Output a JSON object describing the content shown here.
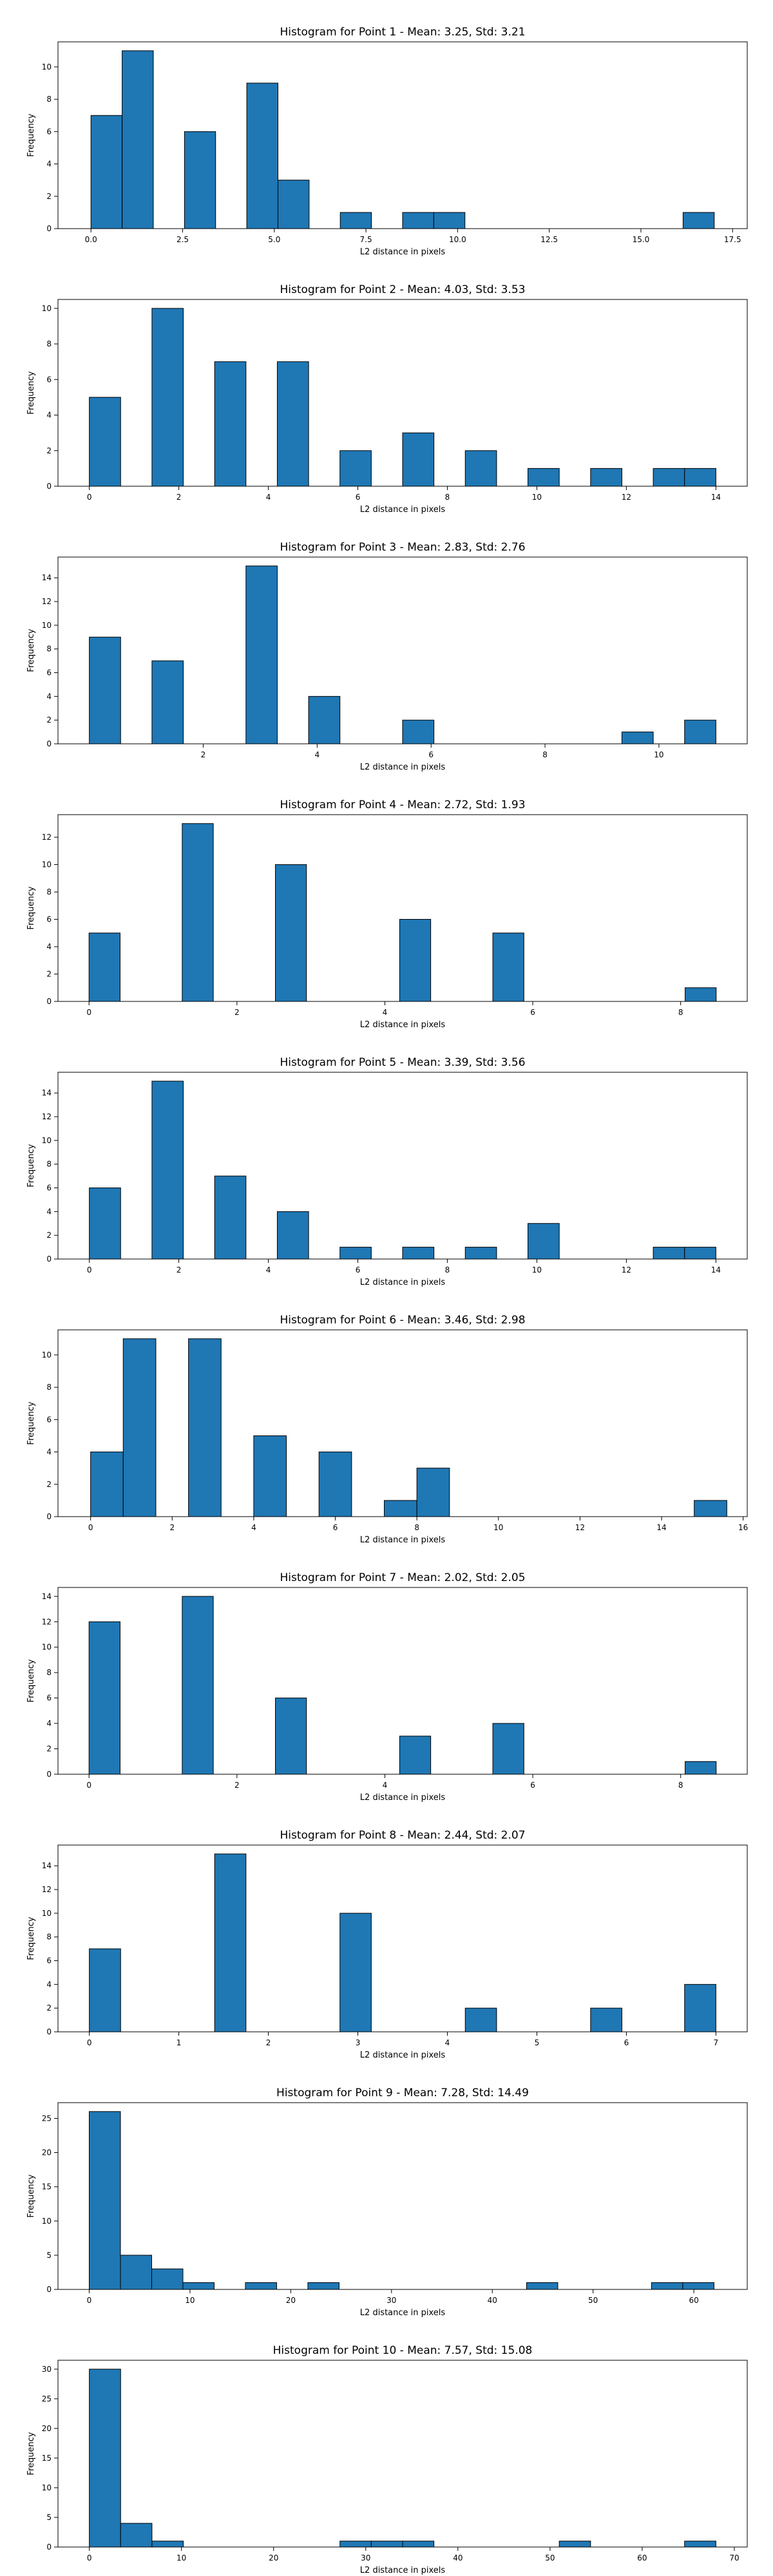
{
  "chart_data": [
    {
      "type": "bar",
      "title": "Histogram for Point 1 - Mean: 3.25, Std: 3.21",
      "xlabel": "L2 distance in pixels",
      "ylabel": "Frequency",
      "xlim": [
        -0.9,
        17.9
      ],
      "ylim": [
        0,
        11.55
      ],
      "bin_width": 0.85,
      "bins": [
        {
          "x": 0,
          "value": 7
        },
        {
          "x": 0.85,
          "value": 11
        },
        {
          "x": 2.55,
          "value": 6
        },
        {
          "x": 4.25,
          "value": 9
        },
        {
          "x": 5.1,
          "value": 3
        },
        {
          "x": 6.8,
          "value": 1
        },
        {
          "x": 8.5,
          "value": 1
        },
        {
          "x": 9.35,
          "value": 1
        },
        {
          "x": 16.15,
          "value": 1
        }
      ],
      "xticks": [
        0,
        2.5,
        5,
        7.5,
        10,
        12.5,
        15,
        17.5
      ],
      "xticklabels": [
        "0.0",
        "2.5",
        "5.0",
        "7.5",
        "10.0",
        "12.5",
        "15.0",
        "17.5"
      ],
      "yticks": [
        0,
        2,
        4,
        6,
        8,
        10
      ],
      "yticklabels": [
        "0",
        "2",
        "4",
        "6",
        "8",
        "10"
      ],
      "grid": false
    },
    {
      "type": "bar",
      "title": "Histogram for Point 2 - Mean: 4.03, Std: 3.53",
      "xlabel": "L2 distance in pixels",
      "ylabel": "Frequency",
      "xlim": [
        -0.7,
        14.7
      ],
      "ylim": [
        0,
        10.5
      ],
      "bin_width": 0.7,
      "bins": [
        {
          "x": 0,
          "value": 5
        },
        {
          "x": 1.4,
          "value": 10
        },
        {
          "x": 2.8,
          "value": 7
        },
        {
          "x": 4.2,
          "value": 7
        },
        {
          "x": 5.6,
          "value": 2
        },
        {
          "x": 7,
          "value": 3
        },
        {
          "x": 8.4,
          "value": 2
        },
        {
          "x": 9.8,
          "value": 1
        },
        {
          "x": 11.2,
          "value": 1
        },
        {
          "x": 12.6,
          "value": 1
        },
        {
          "x": 13.3,
          "value": 1
        }
      ],
      "xticks": [
        0,
        2,
        4,
        6,
        8,
        10,
        12,
        14
      ],
      "xticklabels": [
        "0",
        "2",
        "4",
        "6",
        "8",
        "10",
        "12",
        "14"
      ],
      "yticks": [
        0,
        2,
        4,
        6,
        8,
        10
      ],
      "yticklabels": [
        "0",
        "2",
        "4",
        "6",
        "8",
        "10"
      ],
      "grid": false
    },
    {
      "type": "bar",
      "title": "Histogram for Point 3 - Mean: 2.83, Std: 2.76",
      "xlabel": "L2 distance in pixels",
      "ylabel": "Frequency",
      "xlim": [
        -0.55,
        11.55
      ],
      "ylim": [
        0,
        15.75
      ],
      "bin_width": 0.55,
      "bins": [
        {
          "x": 0,
          "value": 9
        },
        {
          "x": 1.1,
          "value": 7
        },
        {
          "x": 2.75,
          "value": 15
        },
        {
          "x": 3.85,
          "value": 4
        },
        {
          "x": 5.5,
          "value": 2
        },
        {
          "x": 9.35,
          "value": 1
        },
        {
          "x": 10.45,
          "value": 2
        }
      ],
      "xticks": [
        2,
        4,
        6,
        8,
        10
      ],
      "xticklabels": [
        "2",
        "4",
        "6",
        "8",
        "10"
      ],
      "yticks": [
        0,
        2,
        4,
        6,
        8,
        10,
        12,
        14
      ],
      "yticklabels": [
        "0",
        "2",
        "4",
        "6",
        "8",
        "10",
        "12",
        "14"
      ],
      "grid": false
    },
    {
      "type": "bar",
      "title": "Histogram for Point 4 - Mean: 2.72, Std: 1.93",
      "xlabel": "L2 distance in pixels",
      "ylabel": "Frequency",
      "xlim": [
        -0.42,
        8.9
      ],
      "ylim": [
        0,
        13.65
      ],
      "bin_width": 0.42,
      "bins": [
        {
          "x": 0,
          "value": 5
        },
        {
          "x": 1.26,
          "value": 13
        },
        {
          "x": 2.52,
          "value": 10
        },
        {
          "x": 4.2,
          "value": 6
        },
        {
          "x": 5.46,
          "value": 5
        },
        {
          "x": 8.06,
          "value": 1
        }
      ],
      "xticks": [
        0,
        2,
        4,
        6,
        8
      ],
      "xticklabels": [
        "0",
        "2",
        "4",
        "6",
        "8"
      ],
      "yticks": [
        0,
        2,
        4,
        6,
        8,
        10,
        12
      ],
      "yticklabels": [
        "0",
        "2",
        "4",
        "6",
        "8",
        "10",
        "12"
      ],
      "grid": false
    },
    {
      "type": "bar",
      "title": "Histogram for Point 5 - Mean: 3.39, Std: 3.56",
      "xlabel": "L2 distance in pixels",
      "ylabel": "Frequency",
      "xlim": [
        -0.7,
        14.7
      ],
      "ylim": [
        0,
        15.75
      ],
      "bin_width": 0.7,
      "bins": [
        {
          "x": 0,
          "value": 6
        },
        {
          "x": 1.4,
          "value": 15
        },
        {
          "x": 2.8,
          "value": 7
        },
        {
          "x": 4.2,
          "value": 4
        },
        {
          "x": 5.6,
          "value": 1
        },
        {
          "x": 7,
          "value": 1
        },
        {
          "x": 8.4,
          "value": 1
        },
        {
          "x": 9.8,
          "value": 3
        },
        {
          "x": 12.6,
          "value": 1
        },
        {
          "x": 13.3,
          "value": 1
        }
      ],
      "xticks": [
        0,
        2,
        4,
        6,
        8,
        10,
        12,
        14
      ],
      "xticklabels": [
        "0",
        "2",
        "4",
        "6",
        "8",
        "10",
        "12",
        "14"
      ],
      "yticks": [
        0,
        2,
        4,
        6,
        8,
        10,
        12,
        14
      ],
      "yticklabels": [
        "0",
        "2",
        "4",
        "6",
        "8",
        "10",
        "12",
        "14"
      ],
      "grid": false
    },
    {
      "type": "bar",
      "title": "Histogram for Point 6 - Mean: 3.46, Std: 2.98",
      "xlabel": "L2 distance in pixels",
      "ylabel": "Frequency",
      "xlim": [
        -0.8,
        16.1
      ],
      "ylim": [
        0,
        11.55
      ],
      "bin_width": 0.8,
      "bins": [
        {
          "x": 0,
          "value": 4
        },
        {
          "x": 0.8,
          "value": 11
        },
        {
          "x": 2.4,
          "value": 11
        },
        {
          "x": 4,
          "value": 5
        },
        {
          "x": 5.6,
          "value": 4
        },
        {
          "x": 7.2,
          "value": 1
        },
        {
          "x": 8,
          "value": 3
        },
        {
          "x": 14.8,
          "value": 1
        }
      ],
      "xticks": [
        0,
        2,
        4,
        6,
        8,
        10,
        12,
        14,
        16
      ],
      "xticklabels": [
        "0",
        "2",
        "4",
        "6",
        "8",
        "10",
        "12",
        "14",
        "16"
      ],
      "yticks": [
        0,
        2,
        4,
        6,
        8,
        10
      ],
      "yticklabels": [
        "0",
        "2",
        "4",
        "6",
        "8",
        "10"
      ],
      "grid": false
    },
    {
      "type": "bar",
      "title": "Histogram for Point 7 - Mean: 2.02, Std: 2.05",
      "xlabel": "L2 distance in pixels",
      "ylabel": "Frequency",
      "xlim": [
        -0.42,
        8.9
      ],
      "ylim": [
        0,
        14.7
      ],
      "bin_width": 0.42,
      "bins": [
        {
          "x": 0,
          "value": 12
        },
        {
          "x": 1.26,
          "value": 14
        },
        {
          "x": 2.52,
          "value": 6
        },
        {
          "x": 4.2,
          "value": 3
        },
        {
          "x": 5.46,
          "value": 4
        },
        {
          "x": 8.06,
          "value": 1
        }
      ],
      "xticks": [
        0,
        2,
        4,
        6,
        8
      ],
      "xticklabels": [
        "0",
        "2",
        "4",
        "6",
        "8"
      ],
      "yticks": [
        0,
        2,
        4,
        6,
        8,
        10,
        12,
        14
      ],
      "yticklabels": [
        "0",
        "2",
        "4",
        "6",
        "8",
        "10",
        "12",
        "14"
      ],
      "grid": false
    },
    {
      "type": "bar",
      "title": "Histogram for Point 8 - Mean: 2.44, Std: 2.07",
      "xlabel": "L2 distance in pixels",
      "ylabel": "Frequency",
      "xlim": [
        -0.35,
        7.35
      ],
      "ylim": [
        0,
        15.75
      ],
      "bin_width": 0.35,
      "bins": [
        {
          "x": 0,
          "value": 7
        },
        {
          "x": 1.4,
          "value": 15
        },
        {
          "x": 2.8,
          "value": 10
        },
        {
          "x": 4.2,
          "value": 2
        },
        {
          "x": 5.6,
          "value": 2
        },
        {
          "x": 6.65,
          "value": 4
        }
      ],
      "xticks": [
        0,
        1,
        2,
        3,
        4,
        5,
        6,
        7
      ],
      "xticklabels": [
        "0",
        "1",
        "2",
        "3",
        "4",
        "5",
        "6",
        "7"
      ],
      "yticks": [
        0,
        2,
        4,
        6,
        8,
        10,
        12,
        14
      ],
      "yticklabels": [
        "0",
        "2",
        "4",
        "6",
        "8",
        "10",
        "12",
        "14"
      ],
      "grid": false
    },
    {
      "type": "bar",
      "title": "Histogram for Point 9 - Mean: 7.28, Std: 14.49",
      "xlabel": "L2 distance in pixels",
      "ylabel": "Frequency",
      "xlim": [
        -3.1,
        65.3
      ],
      "ylim": [
        0,
        27.3
      ],
      "bin_width": 3.1,
      "bins": [
        {
          "x": 0,
          "value": 26
        },
        {
          "x": 3.1,
          "value": 5
        },
        {
          "x": 6.2,
          "value": 3
        },
        {
          "x": 9.3,
          "value": 1
        },
        {
          "x": 15.5,
          "value": 1
        },
        {
          "x": 21.7,
          "value": 1
        },
        {
          "x": 43.4,
          "value": 1
        },
        {
          "x": 55.8,
          "value": 1
        },
        {
          "x": 58.9,
          "value": 1
        }
      ],
      "xticks": [
        0,
        10,
        20,
        30,
        40,
        50,
        60
      ],
      "xticklabels": [
        "0",
        "10",
        "20",
        "30",
        "40",
        "50",
        "60"
      ],
      "yticks": [
        0,
        5,
        10,
        15,
        20,
        25
      ],
      "yticklabels": [
        "0",
        "5",
        "10",
        "15",
        "20",
        "25"
      ],
      "grid": false
    },
    {
      "type": "bar",
      "title": "Histogram for Point 10 - Mean: 7.57, Std: 15.08",
      "xlabel": "L2 distance in pixels",
      "ylabel": "Frequency",
      "xlim": [
        -3.4,
        71.4
      ],
      "ylim": [
        0,
        31.5
      ],
      "bin_width": 3.4,
      "bins": [
        {
          "x": 0,
          "value": 30
        },
        {
          "x": 3.4,
          "value": 4
        },
        {
          "x": 6.8,
          "value": 1
        },
        {
          "x": 27.2,
          "value": 1
        },
        {
          "x": 30.6,
          "value": 1
        },
        {
          "x": 34,
          "value": 1
        },
        {
          "x": 51,
          "value": 1
        },
        {
          "x": 64.6,
          "value": 1
        }
      ],
      "xticks": [
        0,
        10,
        20,
        30,
        40,
        50,
        60,
        70
      ],
      "xticklabels": [
        "0",
        "10",
        "20",
        "30",
        "40",
        "50",
        "60",
        "70"
      ],
      "yticks": [
        0,
        5,
        10,
        15,
        20,
        25,
        30
      ],
      "yticklabels": [
        "0",
        "5",
        "10",
        "15",
        "20",
        "25",
        "30"
      ],
      "grid": false
    }
  ]
}
